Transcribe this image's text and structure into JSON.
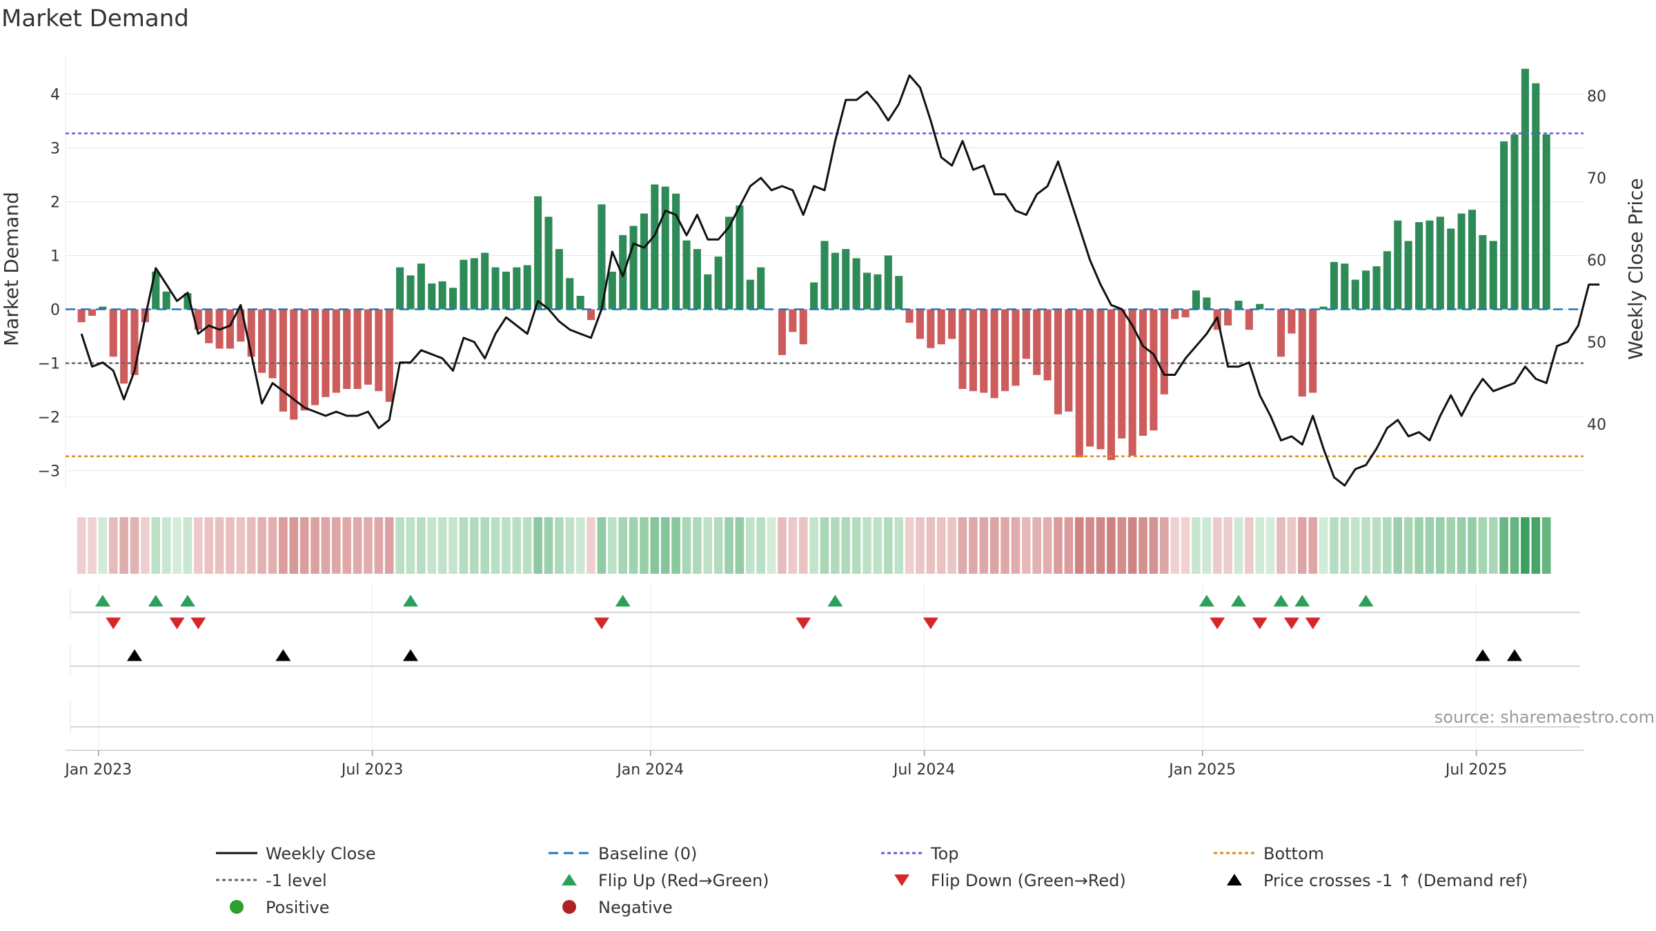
{
  "chart_data": {
    "type": "bar",
    "title": "Market Demand",
    "ylabel": "Market Demand",
    "y2label": "Weekly Close Price",
    "ylim": [
      -3.35,
      4.85
    ],
    "y2lim": [
      32.0,
      85.8
    ],
    "y_ticks": [
      4,
      3,
      2,
      1,
      0,
      -1,
      -2,
      -3
    ],
    "y_tick_labels": [
      "4",
      "3",
      "2",
      "1",
      "0",
      "−1",
      "−2",
      "−3"
    ],
    "y2_ticks": [
      80,
      70,
      60,
      50,
      40
    ],
    "x_range": [
      -1.5,
      141.5
    ],
    "x_ticks": [
      {
        "label": "Jan 2023",
        "week": 1.6
      },
      {
        "label": "Jul 2023",
        "week": 27.4
      },
      {
        "label": "Jan 2024",
        "week": 53.6
      },
      {
        "label": "Jul 2024",
        "week": 79.4
      },
      {
        "label": "Jan 2025",
        "week": 105.6
      },
      {
        "label": "Jul 2025",
        "week": 131.4
      }
    ],
    "reference_lines": {
      "baseline": 0,
      "top": 3.27,
      "minus_one": -1,
      "bottom": -2.73
    },
    "colors": {
      "positive": "#2e8b57",
      "negative": "#cd5c5c",
      "close": "#111111",
      "baseline": "#1f77b4",
      "top": "#6a5acd",
      "bottom": "#d98c1a",
      "minus_one": "#666666",
      "flip_up": "#2ca05a",
      "flip_down": "#d62728",
      "price_cross": "#000000",
      "pos_dot": "#2ca02c",
      "neg_dot": "#b22222"
    },
    "demand": [
      -0.24,
      -0.12,
      0.05,
      -0.88,
      -1.38,
      -1.22,
      -0.24,
      0.7,
      0.33,
      0,
      0.3,
      -0.38,
      -0.63,
      -0.73,
      -0.73,
      -0.6,
      -0.88,
      -1.18,
      -1.28,
      -1.9,
      -2.05,
      -1.88,
      -1.78,
      -1.63,
      -1.55,
      -1.48,
      -1.48,
      -1.4,
      -1.52,
      -1.72,
      0.78,
      0.63,
      0.85,
      0.48,
      0.52,
      0.4,
      0.92,
      0.95,
      1.05,
      0.78,
      0.7,
      0.78,
      0.82,
      2.1,
      1.72,
      1.12,
      0.58,
      0.25,
      -0.2,
      1.95,
      0.7,
      1.38,
      1.55,
      1.78,
      2.32,
      2.28,
      2.15,
      1.28,
      1.12,
      0.65,
      0.98,
      1.72,
      1.93,
      0.55,
      0.78,
      0,
      -0.85,
      -0.42,
      -0.65,
      0.5,
      1.27,
      1.05,
      1.12,
      0.95,
      0.68,
      0.65,
      1.0,
      0.62,
      -0.25,
      -0.55,
      -0.72,
      -0.65,
      -0.55,
      -1.48,
      -1.52,
      -1.55,
      -1.65,
      -1.52,
      -1.42,
      -0.92,
      -1.22,
      -1.32,
      -1.95,
      -1.9,
      -2.75,
      -2.55,
      -2.6,
      -2.8,
      -2.4,
      -2.72,
      -2.35,
      -2.25,
      -1.58,
      -0.18,
      -0.15,
      0.35,
      0.22,
      -0.38,
      -0.3,
      0.16,
      -0.38,
      0.1,
      0,
      -0.88,
      -0.45,
      -1.62,
      -1.55,
      0.05,
      0.88,
      0.85,
      0.55,
      0.72,
      0.8,
      1.08,
      1.65,
      1.27,
      1.62,
      1.65,
      1.72,
      1.5,
      1.78,
      1.85,
      1.38,
      1.27,
      3.12,
      3.25,
      4.47,
      4.2,
      3.25
    ],
    "close": [
      51.0,
      47.0,
      47.5,
      46.5,
      43.0,
      46.5,
      53.0,
      59.0,
      57.0,
      55.0,
      56.0,
      51.0,
      52.0,
      51.5,
      52.0,
      54.5,
      48.5,
      42.5,
      45.0,
      44.0,
      43.0,
      42.0,
      41.5,
      41.0,
      41.5,
      41.0,
      41.0,
      41.5,
      39.5,
      40.5,
      47.5,
      47.5,
      49.0,
      48.5,
      48.0,
      46.5,
      50.5,
      50.0,
      48.0,
      51.0,
      53.0,
      52.0,
      51.0,
      55.0,
      54.0,
      52.5,
      51.5,
      51.0,
      50.5,
      54.0,
      61.0,
      58.0,
      62.0,
      61.5,
      63.0,
      66.0,
      65.5,
      63.0,
      65.5,
      62.5,
      62.5,
      64.0,
      66.5,
      69.0,
      70.0,
      68.5,
      69.0,
      68.5,
      65.5,
      69.0,
      68.5,
      74.5,
      79.5,
      79.5,
      80.5,
      79.0,
      77.0,
      79.0,
      82.5,
      81.0,
      77.0,
      72.5,
      71.5,
      74.5,
      71.0,
      71.5,
      68.0,
      68.0,
      66.0,
      65.5,
      68.0,
      69.0,
      72.0,
      68.0,
      64.0,
      60.0,
      57.0,
      54.5,
      54.0,
      52.0,
      49.5,
      48.5,
      46.0,
      46.0,
      48.0,
      49.5,
      51.0,
      53.0,
      47.0,
      47.0,
      47.5,
      43.5,
      41.0,
      38.0,
      38.5,
      37.5,
      41.0,
      37.0,
      33.5,
      32.5,
      34.5,
      35.0,
      37.0,
      39.5,
      40.5,
      38.5,
      39.0,
      38.0,
      41.0,
      43.5,
      41.0,
      43.5,
      45.5,
      44.0,
      44.5,
      45.0,
      47.0,
      45.5,
      45.0,
      49.5,
      50.0,
      52.0,
      57.0,
      57.0
    ],
    "flip_up_weeks": [
      2,
      7,
      10,
      31,
      51,
      71,
      106,
      109,
      113,
      115,
      121
    ],
    "flip_down_weeks": [
      3,
      9,
      11,
      49,
      68,
      80,
      107,
      111,
      114,
      116
    ],
    "price_cross_weeks": [
      5,
      19,
      31,
      132,
      135
    ],
    "legend": [
      {
        "label": "Weekly Close",
        "kind": "line-solid",
        "color": "#111111"
      },
      {
        "label": "Baseline (0)",
        "kind": "line-dash",
        "color": "#1f77b4"
      },
      {
        "label": "Top",
        "kind": "line-dot",
        "color": "#6a5acd"
      },
      {
        "label": "Bottom",
        "kind": "line-dot",
        "color": "#d98c1a"
      },
      {
        "label": "-1 level",
        "kind": "line-dot",
        "color": "#666666"
      },
      {
        "label": "Flip Up (Red→Green)",
        "kind": "tri-up",
        "color": "#2ca05a"
      },
      {
        "label": "Flip Down (Green→Red)",
        "kind": "tri-down",
        "color": "#d62728"
      },
      {
        "label": "Price crosses -1 ↑ (Demand ref)",
        "kind": "tri-up",
        "color": "#000000"
      },
      {
        "label": "Positive",
        "kind": "dot",
        "color": "#2ca02c"
      },
      {
        "label": "Negative",
        "kind": "dot",
        "color": "#b22222"
      }
    ],
    "source": "source: sharemaestro.com"
  }
}
